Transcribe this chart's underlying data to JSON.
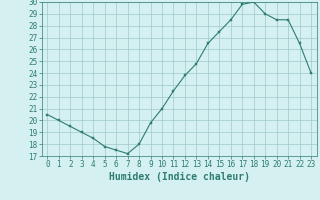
{
  "x": [
    0,
    1,
    2,
    3,
    4,
    5,
    6,
    7,
    8,
    9,
    10,
    11,
    12,
    13,
    14,
    15,
    16,
    17,
    18,
    19,
    20,
    21,
    22,
    23
  ],
  "y": [
    20.5,
    20.0,
    19.5,
    19.0,
    18.5,
    17.8,
    17.5,
    17.2,
    18.0,
    19.8,
    21.0,
    22.5,
    23.8,
    24.8,
    26.5,
    27.5,
    28.5,
    29.8,
    30.0,
    29.0,
    28.5,
    28.5,
    26.5,
    24.0
  ],
  "line_color": "#2e7d6e",
  "marker": "s",
  "marker_size": 1.8,
  "xlabel": "Humidex (Indice chaleur)",
  "bg_color": "#d4f0f0",
  "grid_color": "#a0c8c8",
  "ylim": [
    17,
    30
  ],
  "xlim_min": -0.5,
  "xlim_max": 23.5,
  "yticks": [
    17,
    18,
    19,
    20,
    21,
    22,
    23,
    24,
    25,
    26,
    27,
    28,
    29,
    30
  ],
  "xticks": [
    0,
    1,
    2,
    3,
    4,
    5,
    6,
    7,
    8,
    9,
    10,
    11,
    12,
    13,
    14,
    15,
    16,
    17,
    18,
    19,
    20,
    21,
    22,
    23
  ],
  "tick_fontsize": 5.5,
  "xlabel_fontsize": 7.0
}
